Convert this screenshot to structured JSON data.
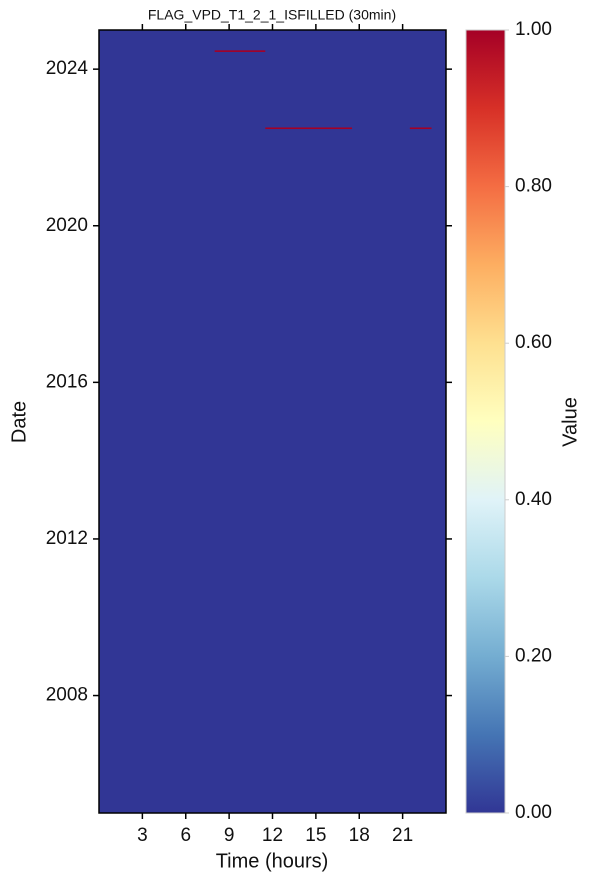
{
  "chart_data": {
    "type": "heatmap",
    "title": "FLAG_VPD_T1_2_1_ISFILLED (30min)",
    "x_label": "Time (hours)",
    "y_label": "Date",
    "colorbar_label": "Value",
    "xlim": [
      0,
      24
    ],
    "xticks": [
      3,
      6,
      9,
      12,
      15,
      18,
      21
    ],
    "ylim": [
      2005,
      2025
    ],
    "yticks": [
      2008,
      2012,
      2016,
      2020,
      2024
    ],
    "clim": [
      0,
      1
    ],
    "cticks": [
      {
        "value": 0,
        "label": "0.00"
      },
      {
        "value": 0.2,
        "label": "0.20"
      },
      {
        "value": 0.4,
        "label": "0.40"
      },
      {
        "value": 0.6,
        "label": "0.60"
      },
      {
        "value": 0.8,
        "label": "0.80"
      },
      {
        "value": 1,
        "label": "1.00"
      }
    ],
    "colormap": [
      "#313695",
      "#4575b4",
      "#74add1",
      "#abd9e9",
      "#e0f3f8",
      "#ffffbf",
      "#fee090",
      "#fdae61",
      "#f46d43",
      "#d73027",
      "#a50026"
    ],
    "background_value": 0,
    "cells": [
      {
        "x": [
          8,
          11.5
        ],
        "y": 2024.46,
        "value": 1
      },
      {
        "x": [
          11.5,
          17.5
        ],
        "y": 2022.49,
        "value": 1
      },
      {
        "x": [
          21.5,
          23
        ],
        "y": 2022.49,
        "value": 1
      }
    ]
  }
}
